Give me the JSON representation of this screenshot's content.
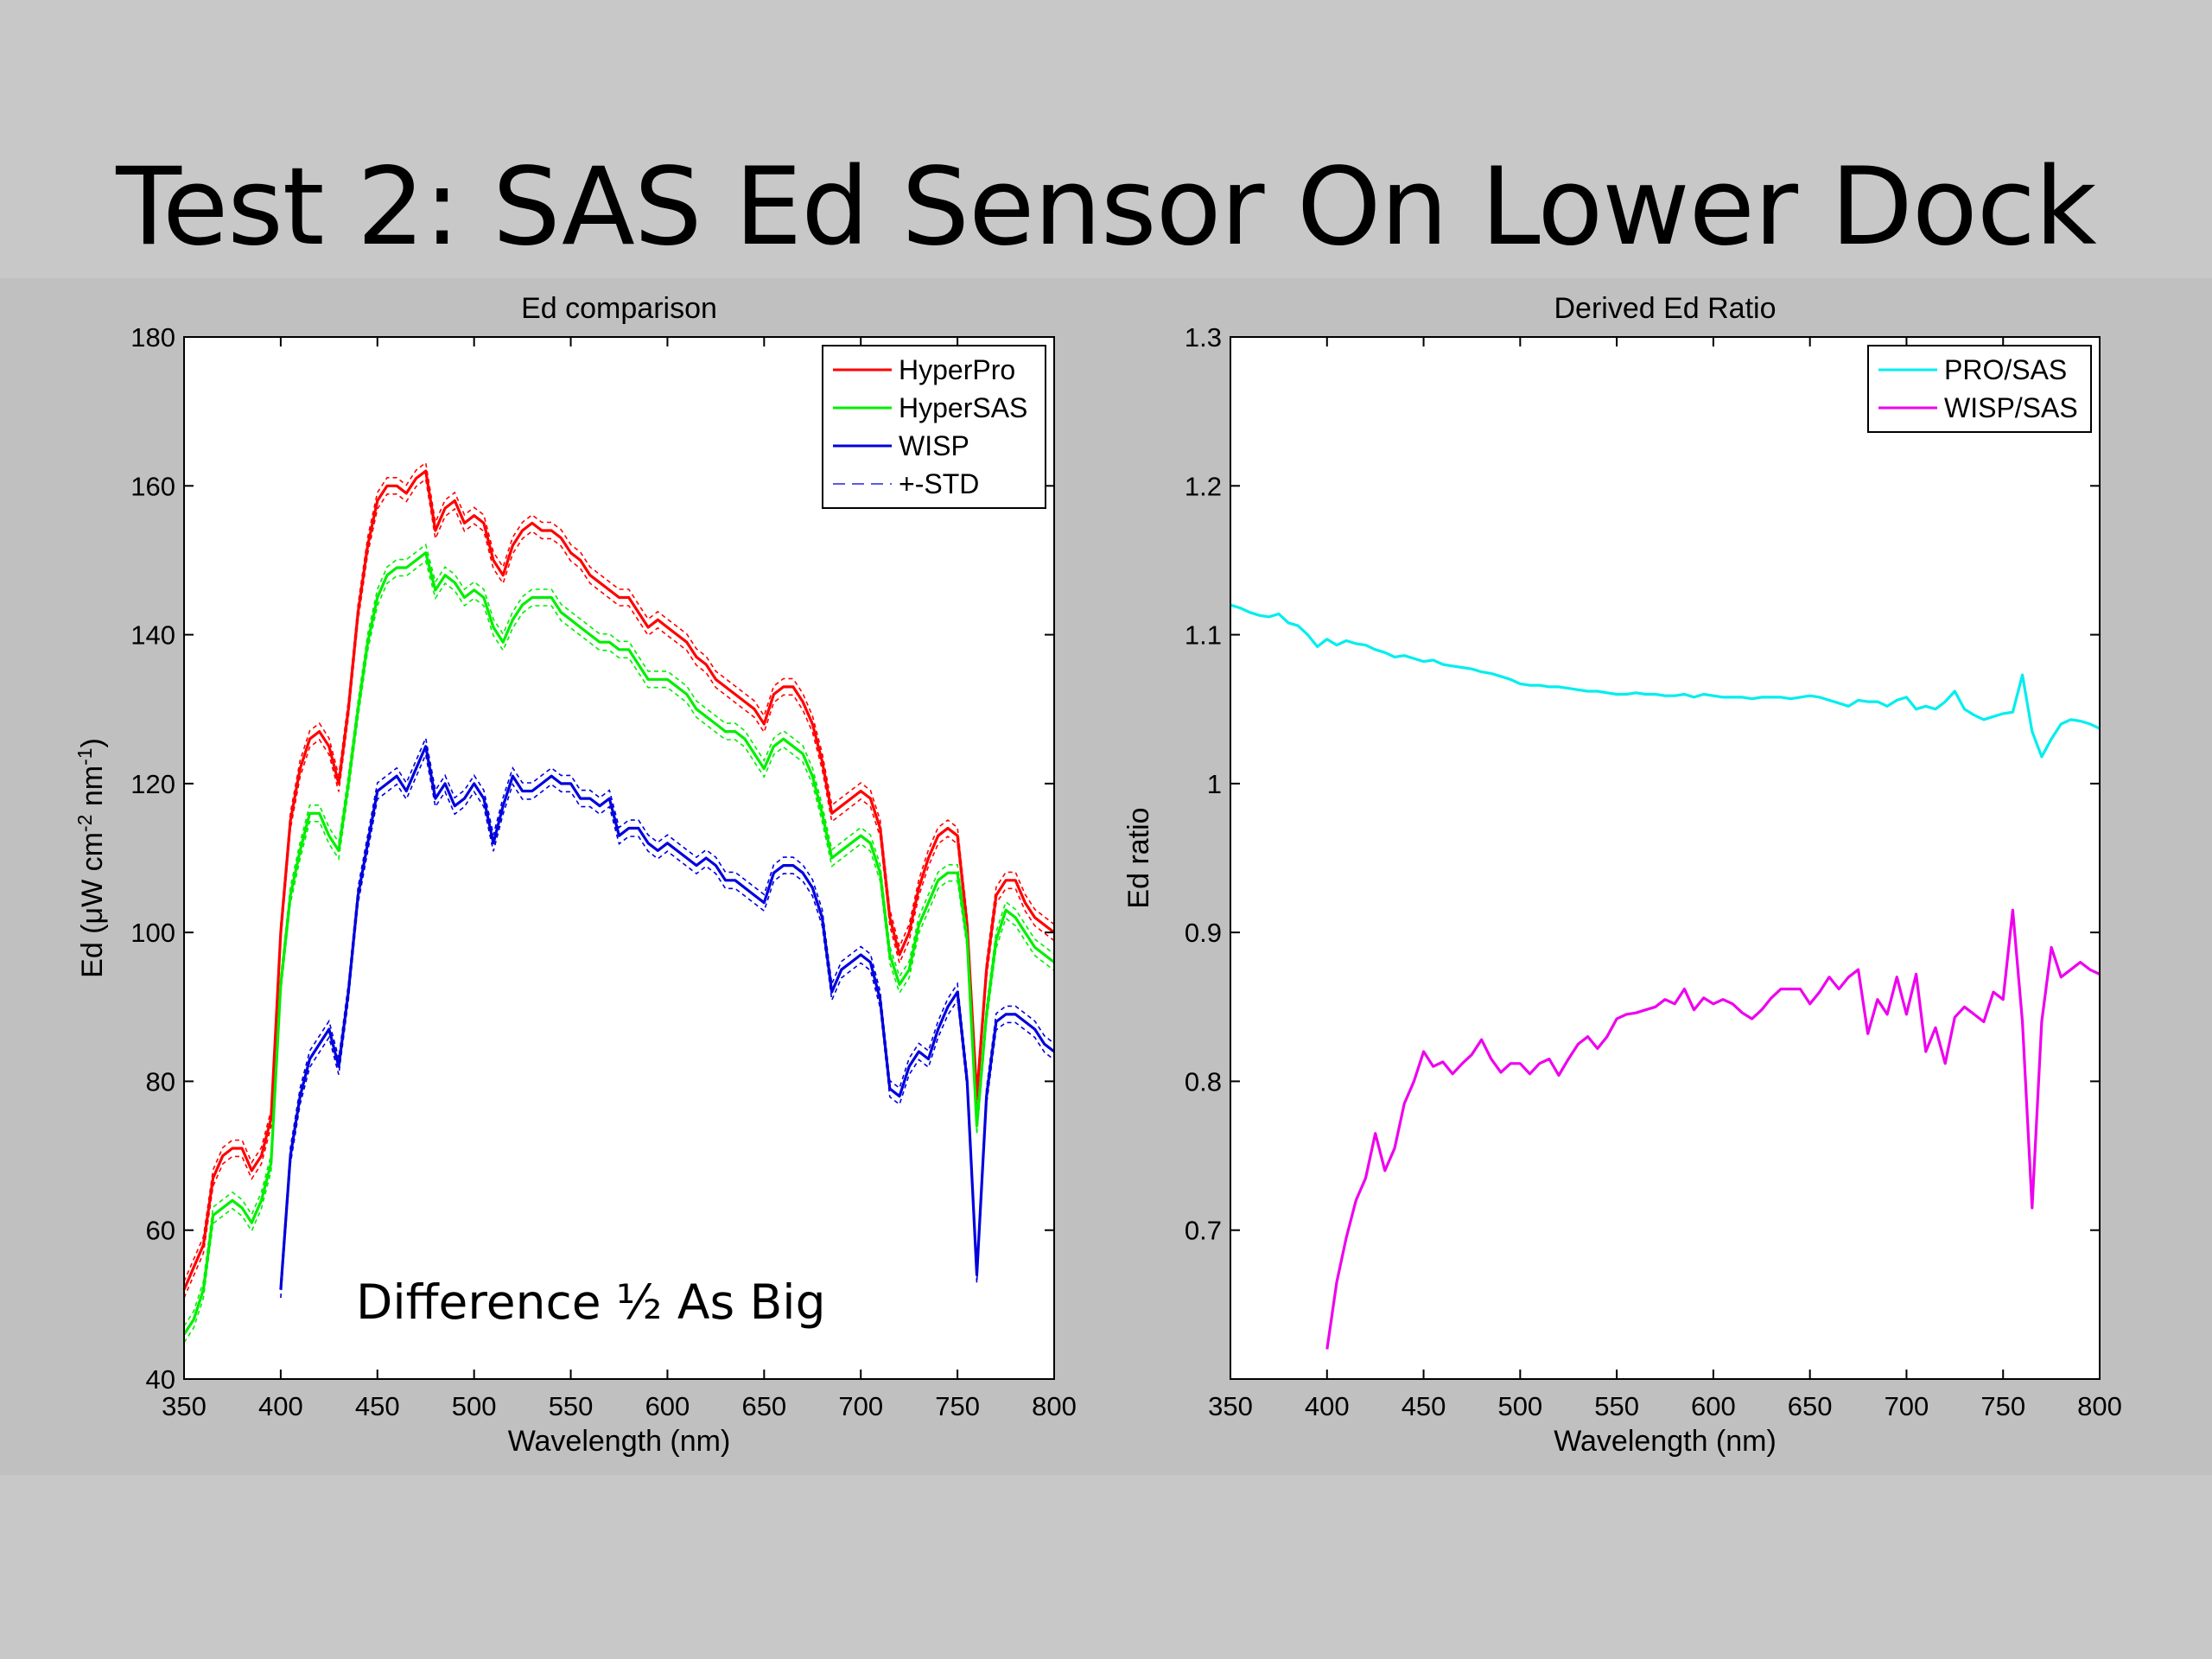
{
  "slide": {
    "title": "Test 2: SAS Ed Sensor On Lower Dock",
    "annotation": "Difference ½  As Big"
  },
  "chart_data": [
    {
      "type": "line",
      "title": "Ed comparison",
      "xlabel": "Wavelength (nm)",
      "ylabel_parts": [
        "Ed (",
        "μ",
        "W cm",
        "-2",
        " nm",
        "-1",
        ")"
      ],
      "xlim": [
        350,
        800
      ],
      "ylim": [
        40,
        180
      ],
      "xticks": [
        350,
        400,
        450,
        500,
        550,
        600,
        650,
        700,
        750,
        800
      ],
      "yticks": [
        40,
        60,
        80,
        100,
        120,
        140,
        160,
        180
      ],
      "grid": false,
      "legend_position": "top-right",
      "series": [
        {
          "name": "HyperPro",
          "color": "#ff0000",
          "x": [
            350,
            355,
            360,
            365,
            370,
            375,
            380,
            385,
            390,
            395,
            400,
            405,
            410,
            415,
            420,
            425,
            430,
            435,
            440,
            445,
            450,
            455,
            460,
            465,
            470,
            475,
            480,
            485,
            490,
            495,
            500,
            505,
            510,
            515,
            520,
            525,
            530,
            535,
            540,
            545,
            550,
            555,
            560,
            565,
            570,
            575,
            580,
            585,
            590,
            595,
            600,
            605,
            610,
            615,
            620,
            625,
            630,
            635,
            640,
            645,
            650,
            655,
            660,
            665,
            670,
            675,
            680,
            685,
            690,
            695,
            700,
            705,
            710,
            715,
            720,
            725,
            730,
            735,
            740,
            745,
            750,
            755,
            760,
            765,
            770,
            775,
            780,
            785,
            790,
            795,
            800
          ],
          "y": [
            52,
            55,
            58,
            67,
            70,
            71,
            71,
            68,
            70,
            75,
            100,
            115,
            122,
            126,
            127,
            125,
            120,
            130,
            143,
            152,
            158,
            160,
            160,
            159,
            161,
            162,
            154,
            157,
            158,
            155,
            156,
            155,
            150,
            148,
            152,
            154,
            155,
            154,
            154,
            153,
            151,
            150,
            148,
            147,
            146,
            145,
            145,
            143,
            141,
            142,
            141,
            140,
            139,
            137,
            136,
            134,
            133,
            132,
            131,
            130,
            128,
            132,
            133,
            133,
            131,
            128,
            123,
            116,
            117,
            118,
            119,
            118,
            114,
            102,
            97,
            100,
            106,
            110,
            113,
            114,
            113,
            101,
            78,
            95,
            105,
            107,
            107,
            104,
            102,
            101,
            100
          ]
        },
        {
          "name": "HyperSAS",
          "color": "#00ee00",
          "x": [
            350,
            355,
            360,
            365,
            370,
            375,
            380,
            385,
            390,
            395,
            400,
            405,
            410,
            415,
            420,
            425,
            430,
            435,
            440,
            445,
            450,
            455,
            460,
            465,
            470,
            475,
            480,
            485,
            490,
            495,
            500,
            505,
            510,
            515,
            520,
            525,
            530,
            535,
            540,
            545,
            550,
            555,
            560,
            565,
            570,
            575,
            580,
            585,
            590,
            595,
            600,
            605,
            610,
            615,
            620,
            625,
            630,
            635,
            640,
            645,
            650,
            655,
            660,
            665,
            670,
            675,
            680,
            685,
            690,
            695,
            700,
            705,
            710,
            715,
            720,
            725,
            730,
            735,
            740,
            745,
            750,
            755,
            760,
            765,
            770,
            775,
            780,
            785,
            790,
            795,
            800
          ],
          "y": [
            46,
            48,
            52,
            62,
            63,
            64,
            63,
            61,
            64,
            69,
            93,
            105,
            111,
            116,
            116,
            113,
            111,
            120,
            130,
            139,
            145,
            148,
            149,
            149,
            150,
            151,
            146,
            148,
            147,
            145,
            146,
            145,
            141,
            139,
            142,
            144,
            145,
            145,
            145,
            143,
            142,
            141,
            140,
            139,
            139,
            138,
            138,
            136,
            134,
            134,
            134,
            133,
            132,
            130,
            129,
            128,
            127,
            127,
            126,
            124,
            122,
            125,
            126,
            125,
            124,
            121,
            116,
            110,
            111,
            112,
            113,
            112,
            108,
            97,
            93,
            95,
            101,
            104,
            107,
            108,
            108,
            99,
            74,
            89,
            99,
            103,
            102,
            100,
            98,
            97,
            96
          ]
        },
        {
          "name": "WISP",
          "color": "#0000dd",
          "x": [
            400,
            405,
            410,
            415,
            420,
            425,
            430,
            435,
            440,
            445,
            450,
            455,
            460,
            465,
            470,
            475,
            480,
            485,
            490,
            495,
            500,
            505,
            510,
            515,
            520,
            525,
            530,
            535,
            540,
            545,
            550,
            555,
            560,
            565,
            570,
            575,
            580,
            585,
            590,
            595,
            600,
            605,
            610,
            615,
            620,
            625,
            630,
            635,
            640,
            645,
            650,
            655,
            660,
            665,
            670,
            675,
            680,
            685,
            690,
            695,
            700,
            705,
            710,
            715,
            720,
            725,
            730,
            735,
            740,
            745,
            750,
            755,
            760,
            765,
            770,
            775,
            780,
            785,
            790,
            795,
            800
          ],
          "y": [
            52,
            70,
            78,
            83,
            85,
            87,
            82,
            92,
            105,
            112,
            119,
            120,
            121,
            119,
            122,
            125,
            118,
            120,
            117,
            118,
            120,
            118,
            112,
            117,
            121,
            119,
            119,
            120,
            121,
            120,
            120,
            118,
            118,
            117,
            118,
            113,
            114,
            114,
            112,
            111,
            112,
            111,
            110,
            109,
            110,
            109,
            107,
            107,
            106,
            105,
            104,
            108,
            109,
            109,
            108,
            106,
            102,
            92,
            95,
            96,
            97,
            96,
            91,
            79,
            78,
            82,
            84,
            83,
            87,
            90,
            92,
            80,
            54,
            78,
            88,
            89,
            89,
            88,
            87,
            85,
            84
          ]
        },
        {
          "name": "+-STD",
          "color": "#5a5ae6",
          "dash": "dashed"
        }
      ]
    },
    {
      "type": "line",
      "title": "Derived Ed Ratio",
      "xlabel": "Wavelength (nm)",
      "ylabel": "Ed ratio",
      "xlim": [
        350,
        800
      ],
      "ylim": [
        0.6,
        1.3
      ],
      "xticks": [
        350,
        400,
        450,
        500,
        550,
        600,
        650,
        700,
        750,
        800
      ],
      "yticks": [
        0.7,
        0.8,
        0.9,
        1,
        1.1,
        1.2,
        1.3
      ],
      "ytick_labels": [
        "0.7",
        "0.8",
        "0.9",
        "1",
        "1.1",
        "1.2",
        "1.3"
      ],
      "grid": false,
      "legend_position": "top-right",
      "series": [
        {
          "name": "PRO/SAS",
          "color": "#00eeee",
          "x": [
            350,
            355,
            360,
            365,
            370,
            375,
            380,
            385,
            390,
            395,
            400,
            405,
            410,
            415,
            420,
            425,
            430,
            435,
            440,
            445,
            450,
            455,
            460,
            465,
            470,
            475,
            480,
            485,
            490,
            495,
            500,
            505,
            510,
            515,
            520,
            525,
            530,
            535,
            540,
            545,
            550,
            555,
            560,
            565,
            570,
            575,
            580,
            585,
            590,
            595,
            600,
            605,
            610,
            615,
            620,
            625,
            630,
            635,
            640,
            645,
            650,
            655,
            660,
            665,
            670,
            675,
            680,
            685,
            690,
            695,
            700,
            705,
            710,
            715,
            720,
            725,
            730,
            735,
            740,
            745,
            750,
            755,
            760,
            765,
            770,
            775,
            780,
            785,
            790,
            795,
            800
          ],
          "y": [
            1.12,
            1.118,
            1.115,
            1.113,
            1.112,
            1.114,
            1.108,
            1.106,
            1.1,
            1.092,
            1.097,
            1.093,
            1.096,
            1.094,
            1.093,
            1.09,
            1.088,
            1.085,
            1.086,
            1.084,
            1.082,
            1.083,
            1.08,
            1.079,
            1.078,
            1.077,
            1.075,
            1.074,
            1.072,
            1.07,
            1.067,
            1.066,
            1.066,
            1.065,
            1.065,
            1.064,
            1.063,
            1.062,
            1.062,
            1.061,
            1.06,
            1.06,
            1.061,
            1.06,
            1.06,
            1.059,
            1.059,
            1.06,
            1.058,
            1.06,
            1.059,
            1.058,
            1.058,
            1.058,
            1.057,
            1.058,
            1.058,
            1.058,
            1.057,
            1.058,
            1.059,
            1.058,
            1.056,
            1.054,
            1.052,
            1.056,
            1.055,
            1.055,
            1.052,
            1.056,
            1.058,
            1.05,
            1.052,
            1.05,
            1.055,
            1.062,
            1.05,
            1.046,
            1.043,
            1.045,
            1.047,
            1.048,
            1.073,
            1.035,
            1.018,
            1.03,
            1.04,
            1.043,
            1.042,
            1.04,
            1.037
          ]
        },
        {
          "name": "WISP/SAS",
          "color": "#ee00ee",
          "x": [
            400,
            405,
            410,
            415,
            420,
            425,
            430,
            435,
            440,
            445,
            450,
            455,
            460,
            465,
            470,
            475,
            480,
            485,
            490,
            495,
            500,
            505,
            510,
            515,
            520,
            525,
            530,
            535,
            540,
            545,
            550,
            555,
            560,
            565,
            570,
            575,
            580,
            585,
            590,
            595,
            600,
            605,
            610,
            615,
            620,
            625,
            630,
            635,
            640,
            645,
            650,
            655,
            660,
            665,
            670,
            675,
            680,
            685,
            690,
            695,
            700,
            705,
            710,
            715,
            720,
            725,
            730,
            735,
            740,
            745,
            750,
            755,
            760,
            765,
            770,
            775,
            780,
            785,
            790,
            795,
            800
          ],
          "y": [
            0.62,
            0.665,
            0.695,
            0.72,
            0.735,
            0.765,
            0.74,
            0.755,
            0.785,
            0.8,
            0.82,
            0.81,
            0.813,
            0.805,
            0.812,
            0.818,
            0.828,
            0.815,
            0.806,
            0.812,
            0.812,
            0.805,
            0.812,
            0.815,
            0.804,
            0.815,
            0.825,
            0.83,
            0.822,
            0.83,
            0.842,
            0.845,
            0.846,
            0.848,
            0.85,
            0.855,
            0.852,
            0.862,
            0.848,
            0.856,
            0.852,
            0.855,
            0.852,
            0.846,
            0.842,
            0.848,
            0.856,
            0.862,
            0.862,
            0.862,
            0.852,
            0.86,
            0.87,
            0.862,
            0.87,
            0.875,
            0.832,
            0.855,
            0.845,
            0.87,
            0.845,
            0.872,
            0.82,
            0.836,
            0.812,
            0.843,
            0.85,
            0.845,
            0.84,
            0.86,
            0.855,
            0.915,
            0.84,
            0.715,
            0.84,
            0.89,
            0.87,
            0.875,
            0.88,
            0.875,
            0.872
          ]
        }
      ]
    }
  ]
}
